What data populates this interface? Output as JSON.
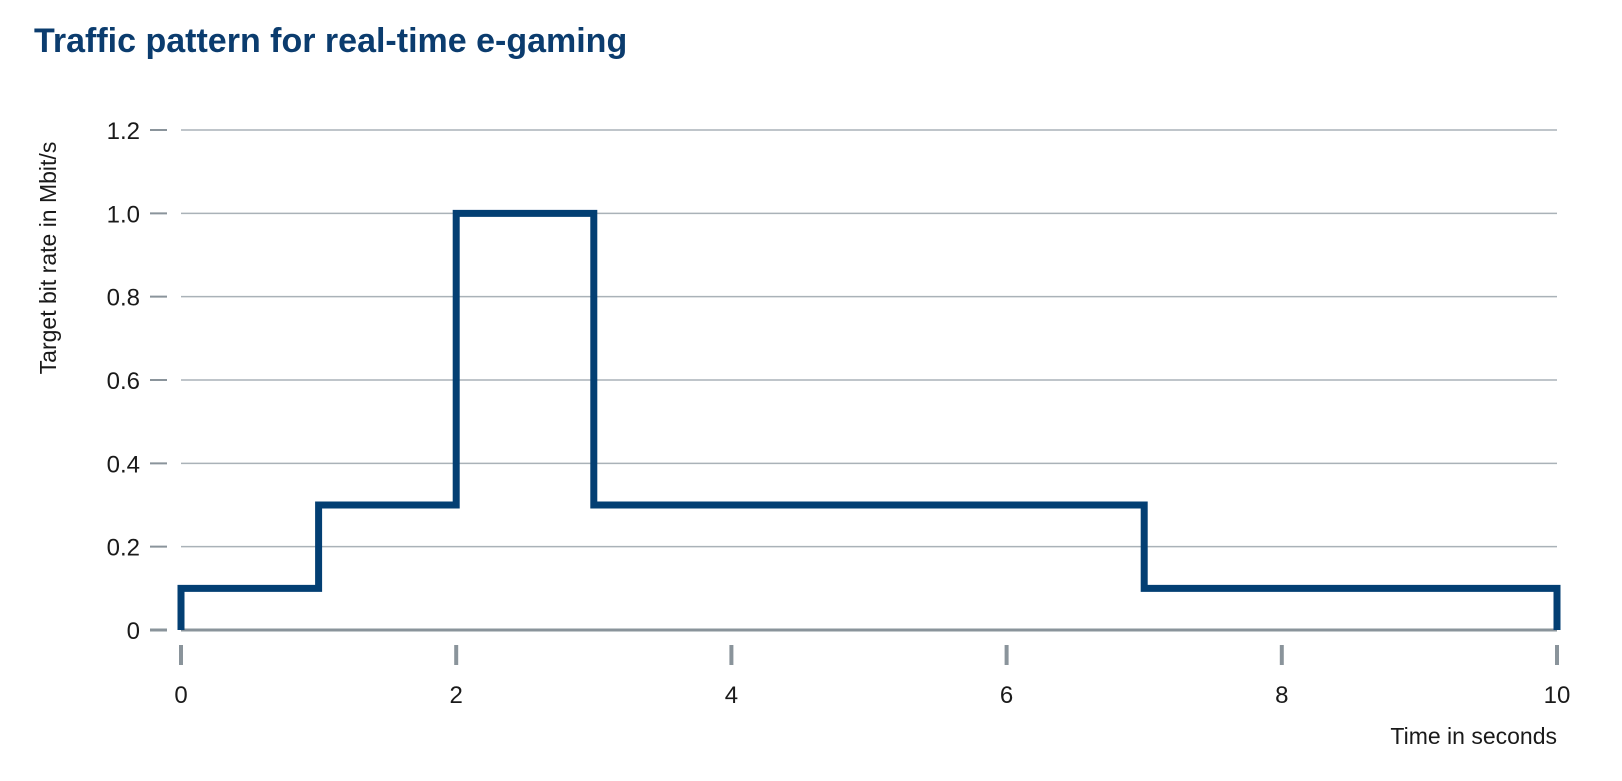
{
  "chart_data": {
    "type": "line",
    "title": "Traffic pattern for real-time e-gaming",
    "y_label": "Target bit rate in Mbit/s",
    "x_label": "Time in seconds",
    "x": [
      0,
      0,
      1,
      1,
      2,
      2,
      3,
      3,
      7,
      7,
      10,
      10
    ],
    "values": [
      0,
      0.1,
      0.1,
      0.3,
      0.3,
      1.0,
      1.0,
      0.3,
      0.3,
      0.1,
      0.1,
      0
    ],
    "color": "#033f73",
    "xlim": [
      0,
      10
    ],
    "xticks": [
      0,
      2,
      4,
      6,
      8,
      10
    ],
    "ylim": [
      0,
      1.2
    ],
    "yticks": [
      0,
      0.2,
      0.4,
      0.6,
      0.8,
      {
        "value": 1,
        "label": "1.0"
      },
      1.2
    ],
    "grid": true
  }
}
